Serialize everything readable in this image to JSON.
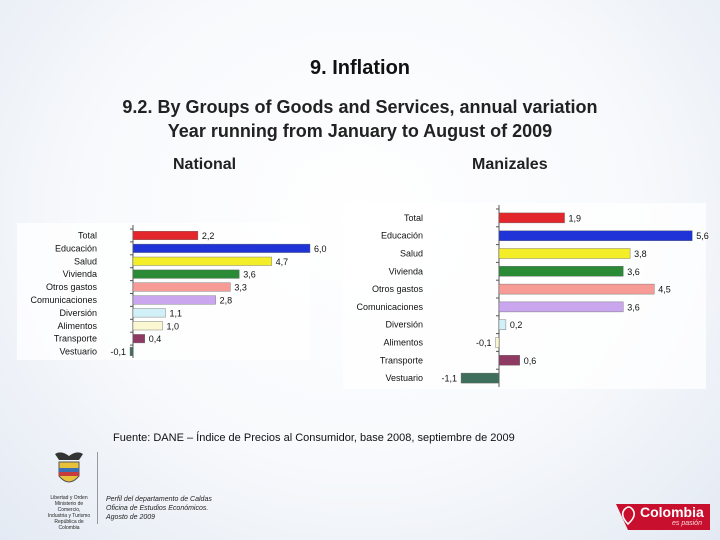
{
  "header": {
    "title": "9. Inflation",
    "subtitle_line1": "9.2. By Groups of Goods and Services, annual variation",
    "subtitle_line2": "Year running from January to August of 2009"
  },
  "chart_data": [
    {
      "type": "bar",
      "orientation": "horizontal",
      "title": "National",
      "categories": [
        "Total",
        "Educación",
        "Salud",
        "Vivienda",
        "Otros gastos",
        "Comunicaciones",
        "Diversión",
        "Alimentos",
        "Transporte",
        "Vestuario"
      ],
      "values": [
        2.2,
        6.0,
        4.7,
        3.6,
        3.3,
        2.8,
        1.1,
        1.0,
        0.4,
        -0.1
      ],
      "value_labels": [
        "2,2",
        "6,0",
        "4,7",
        "3,6",
        "3,3",
        "2,8",
        "1,1",
        "1,0",
        "0,4",
        "-0,1"
      ],
      "colors": [
        "#e3262b",
        "#1f33d6",
        "#f3ee27",
        "#2a8a36",
        "#f79b97",
        "#c9a6ee",
        "#d2f0f8",
        "#fbf7d1",
        "#8e3a63",
        "#3f6f5a"
      ]
    },
    {
      "type": "bar",
      "orientation": "horizontal",
      "title": "Manizales",
      "categories": [
        "Total",
        "Educación",
        "Salud",
        "Vivienda",
        "Otros gastos",
        "Comunicaciones",
        "Diversión",
        "Alimentos",
        "Transporte",
        "Vestuario"
      ],
      "values": [
        1.9,
        5.6,
        3.8,
        3.6,
        4.5,
        3.6,
        0.2,
        -0.1,
        0.6,
        -1.1
      ],
      "value_labels": [
        "1,9",
        "5,6",
        "3,8",
        "3,6",
        "4,5",
        "3,6",
        "0,2",
        "-0,1",
        "0,6",
        "-1,1"
      ],
      "colors": [
        "#e3262b",
        "#1f33d6",
        "#f3ee27",
        "#2a8a36",
        "#f79b97",
        "#c9a6ee",
        "#d2f0f8",
        "#fbf7d1",
        "#8e3a63",
        "#3f6f5a"
      ]
    }
  ],
  "source": "Fuente: DANE – Índice de Precios al Consumidor, base 2008, septiembre de 2009",
  "footnote": [
    "Perfil del departamento de Caldas",
    "Oficina de Estudios Económicos.",
    "Agosto de 2009"
  ],
  "logo_left": [
    "Libertad y Orden",
    "Ministerio de Comercio,",
    "Industria y Turismo",
    "República de Colombia"
  ],
  "logo_right": {
    "brand": "Colombia",
    "tagline": "es pasión"
  },
  "colors": {
    "brand_red": "#c8102e"
  }
}
